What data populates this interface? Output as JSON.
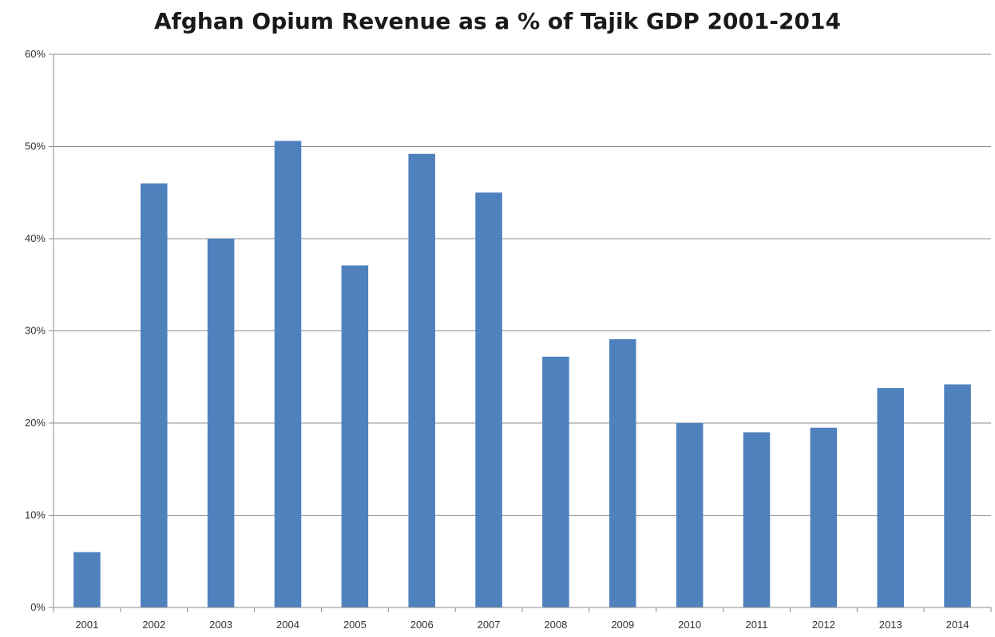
{
  "chart_data": {
    "type": "bar",
    "title": "Afghan Opium Revenue as a % of Tajik GDP 2001-2014",
    "xlabel": "",
    "ylabel": "",
    "categories": [
      "2001",
      "2002",
      "2003",
      "2004",
      "2005",
      "2006",
      "2007",
      "2008",
      "2009",
      "2010",
      "2011",
      "2012",
      "2013",
      "2014"
    ],
    "values": [
      6,
      46,
      40,
      50.6,
      37.1,
      49.2,
      45,
      27.2,
      29.1,
      20,
      19,
      19.5,
      23.8,
      24.2
    ],
    "ylim": [
      0,
      60
    ],
    "yticks": [
      0,
      10,
      20,
      30,
      40,
      50,
      60
    ],
    "ytick_labels": [
      "0%",
      "10%",
      "20%",
      "30%",
      "40%",
      "50%",
      "60%"
    ],
    "grid": true,
    "legend": "none",
    "bar_color": "#4f81bd"
  }
}
